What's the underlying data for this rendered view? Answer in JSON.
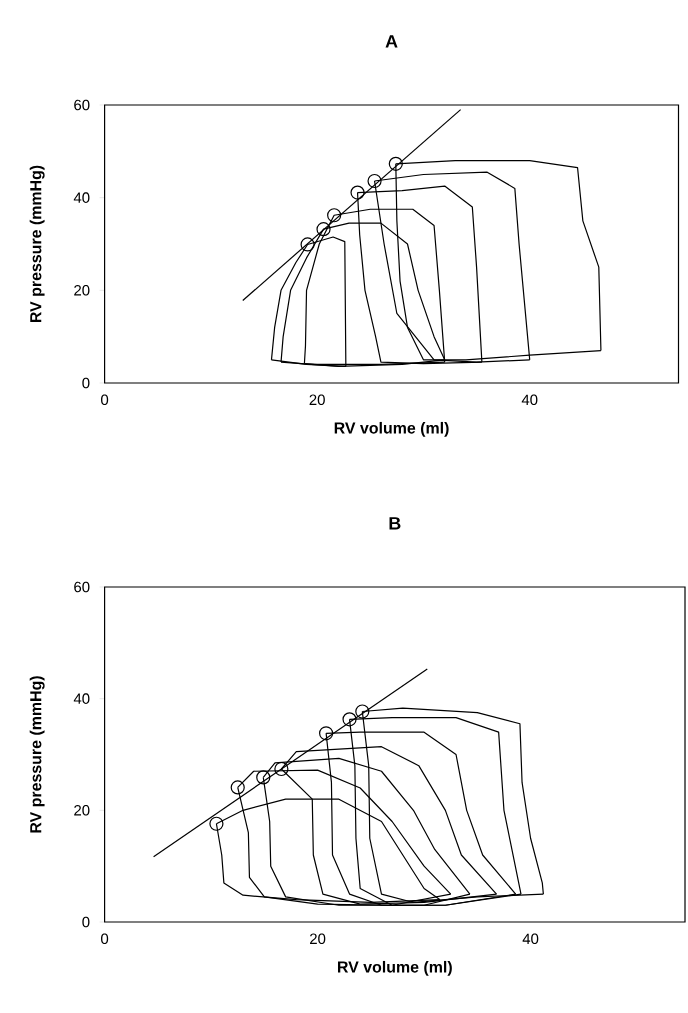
{
  "chart_data": [
    {
      "type": "line",
      "title": "A",
      "xlabel": "RV volume (ml)",
      "ylabel": "RV pressure (mmHg)",
      "xlim": [
        0,
        54
      ],
      "ylim": [
        0,
        60
      ],
      "xticks": [
        0,
        20,
        40
      ],
      "yticks": [
        0,
        20,
        40,
        60
      ],
      "series": [
        {
          "color": "#000000",
          "x": [
            15.7,
            16,
            16.6,
            18,
            19.1,
            21.5,
            22.6,
            22.7
          ],
          "values": [
            5,
            12,
            20,
            26,
            29.9,
            31.5,
            30.5,
            3.6
          ]
        },
        {
          "color": "#000000",
          "x": [
            15.7,
            19,
            22.7
          ],
          "values": [
            5,
            4,
            3.6
          ]
        },
        {
          "color": "#000000",
          "x": [
            16.6,
            16.8,
            17.5,
            19,
            20.6,
            23,
            26,
            28.5,
            29.5,
            31,
            32
          ],
          "values": [
            4.5,
            10,
            20,
            27,
            33.2,
            34.5,
            34.5,
            30,
            20,
            10,
            5
          ]
        },
        {
          "color": "#000000",
          "x": [
            16.6,
            22,
            28,
            32
          ],
          "values": [
            4.5,
            3.6,
            4,
            5
          ]
        },
        {
          "color": "#000000",
          "x": [
            18.8,
            18.9,
            19,
            20.2,
            21.6,
            25,
            29,
            31,
            31.5,
            32
          ],
          "values": [
            4.2,
            8,
            20,
            30,
            36.2,
            37.5,
            37.5,
            34,
            20,
            4.5
          ]
        },
        {
          "color": "#000000",
          "x": [
            18.8,
            20,
            26,
            32
          ],
          "values": [
            4.2,
            4,
            4,
            4.5
          ]
        },
        {
          "color": "#000000",
          "x": [
            23.8,
            28,
            32,
            34.6,
            35,
            35.5
          ],
          "values": [
            41.1,
            41.5,
            42.5,
            38,
            25,
            4.5
          ]
        },
        {
          "color": "#000000",
          "x": [
            23.8,
            24,
            24.5,
            25.5,
            26,
            30,
            35.5
          ],
          "values": [
            41.1,
            32,
            20,
            10,
            4.5,
            4.2,
            4.5
          ]
        },
        {
          "color": "#000000",
          "x": [
            25.4,
            30,
            36,
            38.6,
            39,
            40
          ],
          "values": [
            43.6,
            45,
            45.5,
            42,
            30,
            5
          ]
        },
        {
          "color": "#000000",
          "x": [
            25.4,
            26.3,
            27.5,
            31,
            35,
            40
          ],
          "values": [
            43.6,
            30,
            15,
            5,
            4.5,
            5
          ]
        },
        {
          "color": "#000000",
          "x": [
            27.4,
            33,
            40,
            44.5,
            45,
            46.5,
            46.7
          ],
          "values": [
            47.3,
            48,
            48,
            46.5,
            35,
            25,
            7
          ]
        },
        {
          "color": "#000000",
          "x": [
            27.4,
            27.5,
            27.8,
            28.5,
            30,
            34,
            40,
            46.7
          ],
          "values": [
            47.3,
            35,
            22,
            12,
            5,
            5,
            6,
            7
          ]
        },
        {
          "color": "#000000",
          "x": [
            13.0,
            33.5
          ],
          "values": [
            17.8,
            59.0
          ]
        },
        {
          "type": "scatter",
          "marker": "circle",
          "color": "#000000",
          "x": [
            19.1,
            20.6,
            21.6,
            23.8,
            25.4,
            27.4
          ],
          "values": [
            29.9,
            33.2,
            36.2,
            41.1,
            43.6,
            47.3
          ]
        }
      ]
    },
    {
      "type": "line",
      "title": "B",
      "xlabel": "RV volume (ml)",
      "ylabel": "RV pressure (mmHg)",
      "xlim": [
        0,
        54.5
      ],
      "ylim": [
        0,
        60
      ],
      "xticks": [
        0,
        20,
        40
      ],
      "yticks": [
        0,
        20,
        40,
        60
      ],
      "series": [
        {
          "color": "#000000",
          "x": [
            10.5,
            13,
            17,
            22,
            26,
            28,
            30,
            31.5
          ],
          "values": [
            17.6,
            20,
            22,
            22,
            18,
            12,
            6,
            4
          ]
        },
        {
          "color": "#000000",
          "x": [
            10.5,
            11,
            11.2,
            13,
            18,
            25,
            31.5
          ],
          "values": [
            17.6,
            12,
            7,
            4.8,
            4,
            3.5,
            4
          ]
        },
        {
          "color": "#000000",
          "x": [
            12.5,
            14,
            20,
            24,
            27,
            30,
            32.5
          ],
          "values": [
            24.1,
            27,
            27.2,
            24,
            18,
            10,
            5
          ]
        },
        {
          "color": "#000000",
          "x": [
            12.5,
            13.5,
            13.6,
            15,
            20,
            27,
            32.5
          ],
          "values": [
            24.1,
            16,
            8,
            4.5,
            3.2,
            3,
            5
          ]
        },
        {
          "color": "#000000",
          "x": [
            14.9,
            16,
            22,
            26,
            29,
            31,
            34.3
          ],
          "values": [
            25.9,
            28.5,
            29.3,
            27,
            20,
            13,
            5
          ]
        },
        {
          "color": "#000000",
          "x": [
            14.9,
            15.5,
            15.6,
            17,
            22,
            30,
            34.3
          ],
          "values": [
            25.9,
            18,
            10,
            4.5,
            3,
            3,
            5
          ]
        },
        {
          "color": "#000000",
          "x": [
            16.6,
            18,
            26,
            29.5,
            32,
            33.5,
            36.8
          ],
          "values": [
            27.4,
            30.5,
            31.4,
            28,
            20,
            12,
            5
          ]
        },
        {
          "color": "#000000",
          "x": [
            16.6,
            19.5,
            19.6,
            20.5,
            24,
            30,
            36.8
          ],
          "values": [
            27.4,
            22,
            12,
            5,
            3.2,
            3.5,
            5
          ]
        },
        {
          "color": "#000000",
          "x": [
            20.8,
            24,
            30,
            33,
            34,
            35.5,
            38.6
          ],
          "values": [
            33.8,
            34,
            34,
            30,
            20,
            12,
            5
          ]
        },
        {
          "color": "#000000",
          "x": [
            20.8,
            21.3,
            21.4,
            23,
            26,
            32,
            38.6
          ],
          "values": [
            33.8,
            25,
            12,
            5,
            3,
            3,
            5
          ]
        },
        {
          "color": "#000000",
          "x": [
            23.0,
            27,
            33,
            37,
            37.5,
            39.1
          ],
          "values": [
            36.3,
            36.6,
            36.6,
            34,
            20,
            5
          ]
        },
        {
          "color": "#000000",
          "x": [
            23.0,
            23.5,
            23.6,
            24,
            27,
            32,
            39.1
          ],
          "values": [
            36.3,
            28,
            15,
            6,
            3,
            3,
            5
          ]
        },
        {
          "color": "#000000",
          "x": [
            24.2,
            28,
            35,
            39,
            39.2,
            40,
            41.1,
            41.2
          ],
          "values": [
            37.7,
            38.3,
            37.5,
            35.5,
            25,
            15,
            7,
            5
          ]
        },
        {
          "color": "#000000",
          "x": [
            24.2,
            24.8,
            24.9,
            26,
            29,
            35,
            41.2
          ],
          "values": [
            37.7,
            28,
            15,
            5,
            3.5,
            4.5,
            5
          ]
        },
        {
          "color": "#000000",
          "x": [
            4.6,
            30.3
          ],
          "values": [
            11.7,
            45.3
          ]
        },
        {
          "type": "scatter",
          "marker": "circle",
          "color": "#000000",
          "x": [
            10.5,
            12.5,
            14.9,
            16.6,
            20.8,
            23.0,
            24.2
          ],
          "values": [
            17.6,
            24.1,
            25.9,
            27.4,
            33.8,
            36.3,
            37.7
          ]
        }
      ]
    }
  ]
}
